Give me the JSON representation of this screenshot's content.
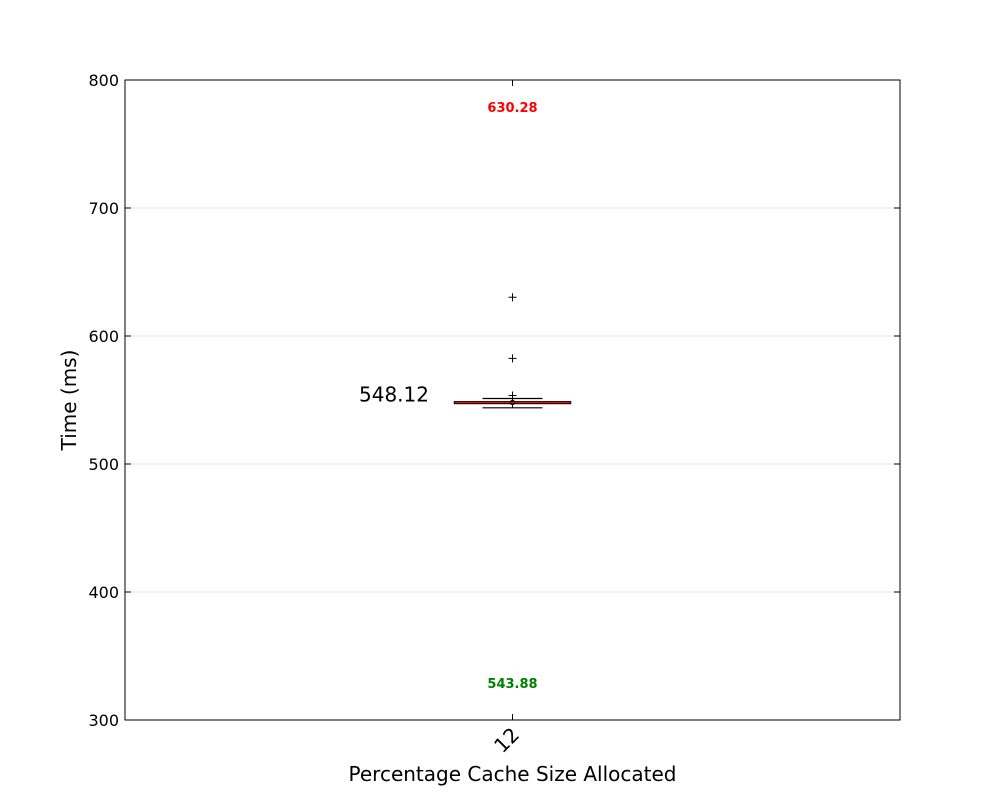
{
  "chart_data": {
    "type": "box",
    "title": "",
    "xlabel": "Percentage Cache Size Allocated",
    "ylabel": "Time (ms)",
    "ylim": [
      300,
      800
    ],
    "yticks": [
      300,
      400,
      500,
      600,
      700,
      800
    ],
    "grid": "horizontal",
    "categories": [
      "12"
    ],
    "series": [
      {
        "box": {
          "whisker_low": 543.88,
          "q1": 547.3,
          "median": 548.12,
          "q3": 548.6,
          "whisker_high": 551.2
        },
        "outliers": [
          553.5,
          582.5,
          630.28
        ]
      }
    ],
    "annotations": {
      "median_label": "548.12",
      "max_label": "630.28",
      "min_label": "543.88"
    },
    "colors": {
      "max_label": "#ff0000",
      "min_label": "#008000",
      "median_line": "#ff0000",
      "box": "#000000",
      "grid": "#e6e6e6"
    }
  }
}
